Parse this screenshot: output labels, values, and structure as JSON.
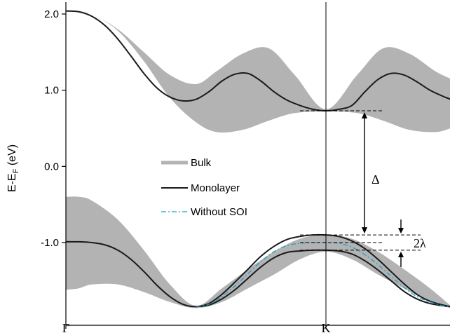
{
  "chart_data": {
    "type": "line",
    "ylabel_main": "E-E",
    "ylabel_sub": "F",
    "ylabel_unit": " (eV)",
    "ylim": [
      -1.9,
      2.1
    ],
    "x_ticks": [
      {
        "x": 0,
        "label": "Γ"
      },
      {
        "x": 1,
        "label": "K"
      }
    ],
    "xlim": [
      0,
      1.48
    ],
    "y_ticks": [
      {
        "value": 2.0,
        "label": "2.0"
      },
      {
        "value": 1.0,
        "label": "1.0"
      },
      {
        "value": 0.0,
        "label": "0.0"
      },
      {
        "value": -1.0,
        "label": "-1.0"
      }
    ],
    "legend": {
      "placement": "center-left",
      "entries": [
        {
          "key": "bulk",
          "label": "Bulk"
        },
        {
          "key": "monolayer",
          "label": "Monolayer"
        },
        {
          "key": "nosoi",
          "label": "Without SOI"
        }
      ]
    },
    "colors": {
      "bulk": "#b3b3b3",
      "monolayer": "#1a1a1a",
      "nosoi": "#1a9fc9"
    },
    "annotations": {
      "gap": "Δ",
      "splitting": "2λ"
    },
    "bulk_conduction_band": {
      "x": [
        0,
        0.05,
        0.1,
        0.2,
        0.3,
        0.4,
        0.5,
        0.58,
        0.68,
        0.78,
        0.88,
        1.0,
        1.12,
        1.22,
        1.32,
        1.42,
        1.48
      ],
      "upper": [
        2.05,
        2.04,
        2.0,
        1.8,
        1.5,
        1.2,
        1.08,
        1.25,
        1.48,
        1.55,
        1.2,
        0.75,
        1.2,
        1.55,
        1.48,
        1.25,
        1.15
      ],
      "lower": [
        2.05,
        2.04,
        2.0,
        1.78,
        1.38,
        0.9,
        0.58,
        0.45,
        0.48,
        0.6,
        0.7,
        0.72,
        0.7,
        0.6,
        0.48,
        0.45,
        0.5
      ]
    },
    "bulk_valence_band": {
      "x": [
        0,
        0.05,
        0.1,
        0.2,
        0.3,
        0.4,
        0.5,
        0.6,
        0.7,
        0.8,
        0.9,
        1.0,
        1.1,
        1.2,
        1.3,
        1.4,
        1.48
      ],
      "upper": [
        -0.4,
        -0.4,
        -0.45,
        -0.7,
        -1.1,
        -1.55,
        -1.83,
        -1.6,
        -1.35,
        -1.12,
        -0.95,
        -0.9,
        -0.95,
        -1.12,
        -1.35,
        -1.6,
        -1.83
      ],
      "lower": [
        -1.62,
        -1.6,
        -1.55,
        -1.55,
        -1.65,
        -1.78,
        -1.86,
        -1.78,
        -1.6,
        -1.42,
        -1.22,
        -1.12,
        -1.22,
        -1.42,
        -1.6,
        -1.78,
        -1.86
      ]
    },
    "monolayer_conduction": {
      "x": [
        0,
        0.05,
        0.1,
        0.15,
        0.2,
        0.25,
        0.3,
        0.35,
        0.4,
        0.45,
        0.5,
        0.55,
        0.6,
        0.65,
        0.7,
        0.75,
        0.8,
        0.85,
        0.9,
        0.95,
        1.0,
        1.05,
        1.1,
        1.15,
        1.2,
        1.25,
        1.3,
        1.35,
        1.4,
        1.45,
        1.48
      ],
      "y": [
        2.04,
        2.03,
        1.97,
        1.85,
        1.67,
        1.45,
        1.22,
        1.03,
        0.91,
        0.86,
        0.88,
        0.98,
        1.12,
        1.21,
        1.22,
        1.12,
        0.98,
        0.87,
        0.8,
        0.75,
        0.73,
        0.75,
        0.8,
        0.98,
        1.14,
        1.22,
        1.2,
        1.11,
        1.0,
        0.92,
        0.88
      ]
    },
    "monolayer_valence_upper": {
      "x": [
        0,
        0.05,
        0.1,
        0.15,
        0.2,
        0.25,
        0.3,
        0.35,
        0.4,
        0.45,
        0.5,
        0.55,
        0.6,
        0.65,
        0.7,
        0.75,
        0.8,
        0.85,
        0.9,
        0.95,
        1.0,
        1.05,
        1.1,
        1.15,
        1.2,
        1.25,
        1.3,
        1.35,
        1.4,
        1.45,
        1.48
      ],
      "y": [
        -0.99,
        -0.99,
        -1.0,
        -1.03,
        -1.1,
        -1.22,
        -1.38,
        -1.56,
        -1.71,
        -1.81,
        -1.84,
        -1.8,
        -1.68,
        -1.52,
        -1.35,
        -1.18,
        -1.05,
        -0.96,
        -0.92,
        -0.9,
        -0.9,
        -0.92,
        -0.98,
        -1.08,
        -1.22,
        -1.38,
        -1.54,
        -1.68,
        -1.77,
        -1.82,
        -1.84
      ]
    },
    "monolayer_valence_lower": {
      "x": [
        0.5,
        0.55,
        0.6,
        0.65,
        0.7,
        0.75,
        0.8,
        0.85,
        0.9,
        0.95,
        1.0,
        1.05,
        1.1,
        1.15,
        1.2,
        1.25,
        1.3,
        1.35,
        1.4,
        1.45,
        1.48
      ],
      "y": [
        -1.84,
        -1.82,
        -1.74,
        -1.62,
        -1.47,
        -1.32,
        -1.2,
        -1.13,
        -1.11,
        -1.1,
        -1.1,
        -1.11,
        -1.15,
        -1.24,
        -1.36,
        -1.5,
        -1.64,
        -1.74,
        -1.8,
        -1.83,
        -1.84
      ]
    },
    "without_soi_valence": {
      "x": [
        0.5,
        0.55,
        0.6,
        0.65,
        0.7,
        0.75,
        0.8,
        0.85,
        0.9,
        0.95,
        1.0,
        1.05,
        1.1,
        1.15,
        1.2,
        1.25,
        1.3,
        1.35,
        1.4,
        1.45,
        1.48
      ],
      "y": [
        -1.84,
        -1.81,
        -1.71,
        -1.57,
        -1.41,
        -1.25,
        -1.12,
        -1.04,
        -1.01,
        -1.0,
        -1.0,
        -1.01,
        -1.06,
        -1.16,
        -1.29,
        -1.44,
        -1.59,
        -1.71,
        -1.78,
        -1.83,
        -1.84
      ]
    },
    "reference_levels": {
      "cb_min": 0.73,
      "vb_upper": -0.9,
      "vb_nosoi": -1.0,
      "vb_lower": -1.1
    }
  }
}
